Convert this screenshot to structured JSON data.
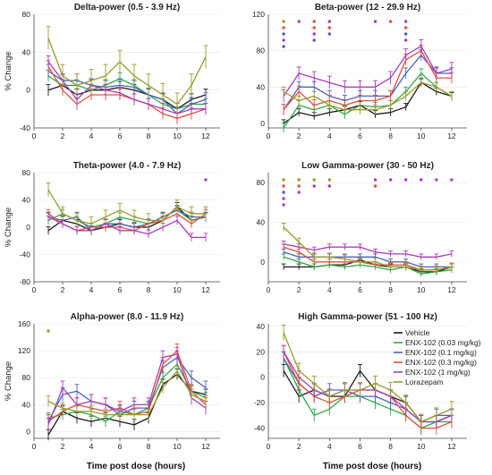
{
  "colors": {
    "Vehicle": "#1a1a1a",
    "ENX-102 (0.03 mg/kg)": "#2ea84a",
    "ENX-102 (0.1 mg/kg)": "#4a63b8",
    "ENX-102 (0.3 mg/kg)": "#e0503c",
    "ENX-102 (1 mg/kg)": "#a63fb8",
    "Lorazepam": "#9a9a2c"
  },
  "xlabels": [
    "Time post dose (hours)",
    "Time post dose (hours)"
  ],
  "legend": [
    "Vehicle",
    "ENX-102 (0.03 mg/kg)",
    "ENX-102 (0.1 mg/kg)",
    "ENX-102 (0.3 mg/kg)",
    "ENX-102 (1 mg/kg)",
    "Lorazepam"
  ],
  "chart_data": [
    {
      "type": "line",
      "title": "Delta-power (0.5 - 3.9 Hz)",
      "ylabel": "% Change",
      "xlim": [
        0,
        13
      ],
      "ylim": [
        -40,
        80
      ],
      "xticks": [
        0,
        2,
        4,
        6,
        8,
        10,
        12
      ],
      "yticks": [
        -40,
        0,
        40,
        80
      ],
      "x": [
        1,
        2,
        3,
        4,
        5,
        6,
        7,
        8,
        9,
        10,
        11,
        12
      ],
      "series": [
        {
          "name": "Vehicle",
          "values": [
            0,
            5,
            -5,
            0,
            0,
            3,
            0,
            -5,
            -10,
            -20,
            -10,
            -5
          ],
          "err": 6
        },
        {
          "name": "ENX-102 (0.03 mg/kg)",
          "values": [
            15,
            5,
            5,
            0,
            5,
            12,
            5,
            -5,
            -15,
            -20,
            -15,
            -15
          ],
          "err": 6
        },
        {
          "name": "ENX-102 (0.1 mg/kg)",
          "values": [
            20,
            10,
            10,
            5,
            3,
            5,
            3,
            -5,
            -10,
            -25,
            -15,
            -10
          ],
          "err": 7
        },
        {
          "name": "ENX-102 (0.3 mg/kg)",
          "values": [
            25,
            0,
            -15,
            -5,
            -5,
            -5,
            -10,
            -15,
            -25,
            -30,
            -25,
            -20
          ],
          "err": 6
        },
        {
          "name": "ENX-102 (1 mg/kg)",
          "values": [
            30,
            10,
            -10,
            5,
            0,
            -3,
            -10,
            -15,
            -20,
            -25,
            -20,
            -20
          ],
          "err": 6
        },
        {
          "name": "Lorazepam",
          "values": [
            55,
            15,
            5,
            10,
            15,
            30,
            15,
            5,
            -5,
            -15,
            5,
            35
          ],
          "err": 12
        }
      ]
    },
    {
      "type": "line",
      "title": "Beta-power (12 - 29.9 Hz)",
      "ylabel": "",
      "xlim": [
        0,
        13
      ],
      "ylim": [
        -5,
        120
      ],
      "xticks": [
        0,
        2,
        4,
        6,
        8,
        10,
        12
      ],
      "yticks": [
        0,
        40,
        80,
        120
      ],
      "x": [
        1,
        2,
        3,
        4,
        5,
        6,
        7,
        8,
        9,
        10,
        11,
        12
      ],
      "series": [
        {
          "name": "Vehicle",
          "values": [
            0,
            12,
            8,
            12,
            15,
            20,
            10,
            12,
            18,
            45,
            35,
            30
          ],
          "err": 4
        },
        {
          "name": "ENX-102 (0.03 mg/kg)",
          "values": [
            -5,
            20,
            15,
            20,
            10,
            20,
            18,
            20,
            35,
            55,
            40,
            30
          ],
          "err": 5
        },
        {
          "name": "ENX-102 (0.1 mg/kg)",
          "values": [
            15,
            40,
            40,
            30,
            25,
            30,
            30,
            30,
            55,
            75,
            55,
            55
          ],
          "err": 6
        },
        {
          "name": "ENX-102 (0.3 mg/kg)",
          "values": [
            15,
            35,
            20,
            25,
            20,
            25,
            25,
            30,
            70,
            80,
            50,
            50
          ],
          "err": 6
        },
        {
          "name": "ENX-102 (1 mg/kg)",
          "values": [
            30,
            55,
            50,
            45,
            40,
            40,
            40,
            50,
            75,
            85,
            55,
            60
          ],
          "err": 7
        },
        {
          "name": "Lorazepam",
          "values": [
            35,
            25,
            30,
            20,
            15,
            15,
            15,
            20,
            30,
            45,
            40,
            30
          ],
          "err": 5
        }
      ],
      "significance": [
        {
          "x": 1,
          "marks": [
            "Lorazepam",
            "ENX-102 (0.3 mg/kg)",
            "ENX-102 (0.1 mg/kg)",
            "ENX-102 (1 mg/kg)",
            "ENX-102 (0.1 mg/kg)"
          ]
        },
        {
          "x": 2,
          "marks": [
            "ENX-102 (1 mg/kg)"
          ]
        },
        {
          "x": 3,
          "marks": [
            "ENX-102 (0.3 mg/kg)",
            "ENX-102 (0.3 mg/kg)",
            "ENX-102 (1 mg/kg)",
            "ENX-102 (0.1 mg/kg)"
          ]
        },
        {
          "x": 4,
          "marks": [
            "ENX-102 (1 mg/kg)",
            "ENX-102 (0.3 mg/kg)",
            "ENX-102 (0.1 mg/kg)"
          ]
        },
        {
          "x": 7,
          "marks": [
            "ENX-102 (1 mg/kg)"
          ]
        },
        {
          "x": 8,
          "marks": [
            "ENX-102 (0.3 mg/kg)"
          ]
        },
        {
          "x": 9,
          "marks": [
            "ENX-102 (1 mg/kg)",
            "ENX-102 (0.3 mg/kg)",
            "ENX-102 (0.1 mg/kg)",
            "ENX-102 (1 mg/kg)"
          ]
        }
      ]
    },
    {
      "type": "line",
      "title": "Theta-power (4.0 - 7.9 Hz)",
      "ylabel": "% Change",
      "xlim": [
        0,
        13
      ],
      "ylim": [
        -80,
        80
      ],
      "xticks": [
        0,
        2,
        4,
        6,
        8,
        10,
        12
      ],
      "yticks": [
        -80,
        -40,
        0,
        40,
        80
      ],
      "x": [
        1,
        2,
        3,
        4,
        5,
        6,
        7,
        8,
        9,
        10,
        11,
        12
      ],
      "series": [
        {
          "name": "Vehicle",
          "values": [
            -5,
            10,
            5,
            -5,
            0,
            5,
            0,
            0,
            10,
            30,
            10,
            15
          ],
          "err": 6
        },
        {
          "name": "ENX-102 (0.03 mg/kg)",
          "values": [
            10,
            20,
            10,
            0,
            5,
            15,
            10,
            5,
            15,
            25,
            10,
            15
          ],
          "err": 6
        },
        {
          "name": "ENX-102 (0.1 mg/kg)",
          "values": [
            15,
            10,
            15,
            -5,
            5,
            5,
            0,
            5,
            15,
            25,
            15,
            15
          ],
          "err": 7
        },
        {
          "name": "ENX-102 (0.3 mg/kg)",
          "values": [
            20,
            5,
            -5,
            0,
            0,
            0,
            -5,
            5,
            10,
            20,
            5,
            20
          ],
          "err": 6
        },
        {
          "name": "ENX-102 (1 mg/kg)",
          "values": [
            15,
            5,
            -5,
            -5,
            5,
            -5,
            -5,
            -10,
            0,
            10,
            -15,
            -15
          ],
          "err": 6
        },
        {
          "name": "Lorazepam",
          "values": [
            55,
            20,
            10,
            5,
            15,
            25,
            15,
            10,
            10,
            30,
            20,
            20
          ],
          "err": 10
        }
      ],
      "significance": [
        {
          "x": 12,
          "marks": [
            "ENX-102 (1 mg/kg)"
          ]
        }
      ]
    },
    {
      "type": "line",
      "title": "Low Gamma-power (30 - 50 Hz)",
      "ylabel": "",
      "xlim": [
        0,
        13
      ],
      "ylim": [
        -20,
        90
      ],
      "xticks": [
        0,
        2,
        4,
        6,
        8,
        10,
        12
      ],
      "yticks": [
        0,
        40,
        80
      ],
      "x": [
        1,
        2,
        3,
        4,
        5,
        6,
        7,
        8,
        9,
        10,
        11,
        12
      ],
      "series": [
        {
          "name": "Vehicle",
          "values": [
            -5,
            -5,
            -5,
            -3,
            -3,
            2,
            -3,
            -5,
            -5,
            -10,
            -10,
            -5
          ],
          "err": 3
        },
        {
          "name": "ENX-102 (0.03 mg/kg)",
          "values": [
            5,
            0,
            -5,
            -3,
            -5,
            -3,
            -5,
            -8,
            -5,
            -12,
            -10,
            -8
          ],
          "err": 3
        },
        {
          "name": "ENX-102 (0.1 mg/kg)",
          "values": [
            10,
            5,
            5,
            5,
            5,
            5,
            5,
            0,
            0,
            -5,
            -5,
            -5
          ],
          "err": 3
        },
        {
          "name": "ENX-102 (0.3 mg/kg)",
          "values": [
            15,
            10,
            0,
            0,
            0,
            0,
            -3,
            -3,
            -3,
            -8,
            -8,
            -5
          ],
          "err": 3
        },
        {
          "name": "ENX-102 (1 mg/kg)",
          "values": [
            18,
            15,
            12,
            15,
            15,
            15,
            10,
            8,
            8,
            5,
            5,
            8
          ],
          "err": 3
        },
        {
          "name": "Lorazepam",
          "values": [
            35,
            20,
            5,
            5,
            3,
            0,
            0,
            -5,
            -5,
            -8,
            -8,
            -5
          ],
          "err": 4
        }
      ],
      "significance": [
        {
          "x": 1,
          "marks": [
            "Lorazepam",
            "ENX-102 (0.3 mg/kg)",
            "ENX-102 (0.1 mg/kg)",
            "ENX-102 (1 mg/kg)",
            "ENX-102 (1 mg/kg)"
          ]
        },
        {
          "x": 2,
          "marks": [
            "Lorazepam",
            "ENX-102 (0.3 mg/kg)",
            "ENX-102 (1 mg/kg)"
          ]
        },
        {
          "x": 3,
          "marks": [
            "Lorazepam",
            "ENX-102 (1 mg/kg)"
          ]
        },
        {
          "x": 4,
          "marks": [
            "Lorazepam",
            "ENX-102 (1 mg/kg)"
          ]
        },
        {
          "x": 7,
          "marks": [
            "ENX-102 (1 mg/kg)",
            "ENX-102 (0.3 mg/kg)"
          ]
        },
        {
          "x": 8,
          "marks": [
            "ENX-102 (1 mg/kg)"
          ]
        },
        {
          "x": 9,
          "marks": [
            "ENX-102 (1 mg/kg)"
          ]
        },
        {
          "x": 10,
          "marks": [
            "ENX-102 (1 mg/kg)"
          ]
        },
        {
          "x": 11,
          "marks": [
            "ENX-102 (1 mg/kg)"
          ]
        },
        {
          "x": 12,
          "marks": [
            "ENX-102 (1 mg/kg)"
          ]
        }
      ]
    },
    {
      "type": "line",
      "title": "Alpha-power (8.0 - 11.9 Hz)",
      "ylabel": "% Change",
      "xlim": [
        0,
        13
      ],
      "ylim": [
        -10,
        160
      ],
      "xticks": [
        0,
        2,
        4,
        6,
        8,
        10,
        12
      ],
      "yticks": [
        0,
        40,
        80,
        120,
        160
      ],
      "x": [
        1,
        2,
        3,
        4,
        5,
        6,
        7,
        8,
        9,
        10,
        11,
        12
      ],
      "series": [
        {
          "name": "Vehicle",
          "values": [
            -5,
            30,
            20,
            15,
            20,
            15,
            10,
            20,
            70,
            85,
            60,
            55
          ],
          "err": 8
        },
        {
          "name": "ENX-102 (0.03 mg/kg)",
          "values": [
            20,
            25,
            30,
            25,
            15,
            30,
            25,
            35,
            80,
            100,
            60,
            50
          ],
          "err": 8
        },
        {
          "name": "ENX-102 (0.1 mg/kg)",
          "values": [
            15,
            55,
            60,
            45,
            40,
            25,
            35,
            35,
            95,
            110,
            80,
            65
          ],
          "err": 10
        },
        {
          "name": "ENX-102 (0.3 mg/kg)",
          "values": [
            15,
            30,
            40,
            35,
            30,
            35,
            25,
            30,
            100,
            120,
            60,
            40
          ],
          "err": 10
        },
        {
          "name": "ENX-102 (1 mg/kg)",
          "values": [
            10,
            65,
            40,
            45,
            40,
            30,
            40,
            40,
            110,
            115,
            50,
            35
          ],
          "err": 10
        },
        {
          "name": "Lorazepam",
          "values": [
            45,
            35,
            30,
            30,
            25,
            25,
            25,
            25,
            65,
            90,
            55,
            45
          ],
          "err": 8
        }
      ],
      "significance": [
        {
          "x": 1,
          "marks": [
            "Lorazepam"
          ]
        }
      ]
    },
    {
      "type": "line",
      "title": "High Gamma-power (51 - 100 Hz)",
      "ylabel": "",
      "xlim": [
        0,
        13
      ],
      "ylim": [
        -48,
        42
      ],
      "xticks": [
        0,
        2,
        4,
        6,
        8,
        10,
        12
      ],
      "yticks": [
        -40,
        -20,
        0,
        20,
        40
      ],
      "x": [
        1,
        2,
        3,
        4,
        5,
        6,
        7,
        8,
        9,
        10,
        11,
        12
      ],
      "series": [
        {
          "name": "Vehicle",
          "values": [
            5,
            -15,
            -10,
            -15,
            -15,
            5,
            -10,
            -15,
            -20,
            -35,
            -35,
            -30
          ],
          "err": 5
        },
        {
          "name": "ENX-102 (0.03 mg/kg)",
          "values": [
            15,
            -10,
            -30,
            -25,
            -15,
            -15,
            -20,
            -25,
            -30,
            -40,
            -35,
            -35
          ],
          "err": 5
        },
        {
          "name": "ENX-102 (0.1 mg/kg)",
          "values": [
            15,
            -5,
            -15,
            -10,
            -10,
            -15,
            -15,
            -20,
            -25,
            -35,
            -30,
            -30
          ],
          "err": 5
        },
        {
          "name": "ENX-102 (0.3 mg/kg)",
          "values": [
            20,
            -5,
            -15,
            -20,
            -15,
            -10,
            -10,
            -15,
            -30,
            -40,
            -40,
            -35
          ],
          "err": 5
        },
        {
          "name": "ENX-102 (1 mg/kg)",
          "values": [
            20,
            0,
            -10,
            -15,
            -10,
            -10,
            -10,
            -15,
            -25,
            -35,
            -35,
            -30
          ],
          "err": 5
        },
        {
          "name": "Lorazepam",
          "values": [
            35,
            5,
            -5,
            -15,
            -10,
            -10,
            -5,
            -10,
            -20,
            -35,
            -30,
            -25
          ],
          "err": 6
        }
      ]
    }
  ]
}
